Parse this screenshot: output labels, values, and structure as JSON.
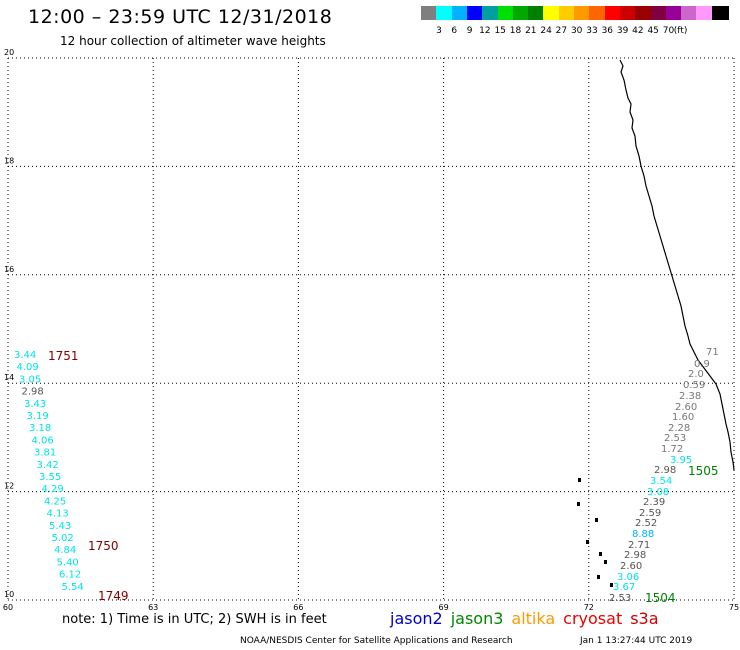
{
  "title": "12:00 – 23:59 UTC 12/31/2018",
  "subtitle": "12 hour collection of altimeter wave heights",
  "legend": {
    "colors": [
      "#7f7f7f",
      "#00ffff",
      "#00b2ff",
      "#0000ff",
      "#00a0a0",
      "#00e000",
      "#00a800",
      "#008000",
      "#ffff00",
      "#ffcc00",
      "#ff9900",
      "#ff6600",
      "#ff0000",
      "#cc0000",
      "#990000",
      "#800040",
      "#990099",
      "#cc66cc",
      "#ff99ff",
      "#000000"
    ],
    "labels": [
      "3",
      "6",
      "9",
      "12",
      "15",
      "18",
      "21",
      "24",
      "27",
      "30",
      "33",
      "36",
      "39",
      "42",
      "45",
      "70"
    ],
    "unit": "(ft)"
  },
  "axes": {
    "x_ticks": [
      "60",
      "63",
      "66",
      "69",
      "72",
      "75"
    ],
    "y_ticks": [
      "10",
      "12",
      "14",
      "16",
      "18",
      "20"
    ],
    "x_range": [
      60,
      75
    ],
    "y_range": [
      10,
      20
    ]
  },
  "observations_west": {
    "color": "#00e5e5",
    "values": [
      "3.44",
      "4.09",
      "3.05",
      "2.98",
      "3.43",
      "3.19",
      "3.18",
      "4.06",
      "3.81",
      "3.42",
      "3.55",
      "4.29",
      "4.25",
      "4.13",
      "5.43",
      "5.02",
      "4.84",
      "5.40",
      "6.12",
      "5.54"
    ],
    "colors": [
      "#00e5e5",
      "#00e5e5",
      "#00e5e5",
      "#555555",
      "#00e5e5",
      "#00e5e5",
      "#00e5e5",
      "#00e5e5",
      "#00e5e5",
      "#00e5e5",
      "#00e5e5",
      "#00e5e5",
      "#00e5e5",
      "#00e5e5",
      "#00e5e5",
      "#00e5e5",
      "#00e5e5",
      "#00e5e5",
      "#00e5e5",
      "#00e5e5"
    ]
  },
  "observations_east": {
    "values": [
      "71",
      "0.9",
      "2.0",
      "0.59",
      "2.38",
      "2.60",
      "1.60",
      "2.28",
      "2.53",
      "1.72",
      "3.95",
      "2.98",
      "3.54",
      "3.08",
      "2.39",
      "2.59",
      "2.52",
      "8.88",
      "2.71",
      "2.98",
      "2.60",
      "3.06",
      "3.67",
      "2.53"
    ],
    "colors": [
      "#777777",
      "#777777",
      "#777777",
      "#777777",
      "#777777",
      "#777777",
      "#777777",
      "#777777",
      "#777777",
      "#777777",
      "#00e5e5",
      "#555555",
      "#00e5e5",
      "#00e5e5",
      "#555555",
      "#555555",
      "#555555",
      "#00b2ff",
      "#555555",
      "#555555",
      "#555555",
      "#00e5e5",
      "#00e5e5",
      "#555555"
    ]
  },
  "pass_labels": [
    {
      "text": "1751",
      "color": "#800000"
    },
    {
      "text": "1750",
      "color": "#800000"
    },
    {
      "text": "1749",
      "color": "#800000"
    },
    {
      "text": "1505",
      "color": "#008000"
    },
    {
      "text": "1504",
      "color": "#008000"
    }
  ],
  "note": "note:  1) Time is in UTC;  2) SWH is in feet",
  "satellites": [
    {
      "name": "jason2",
      "color": "#0000cc"
    },
    {
      "name": "jason3",
      "color": "#008800"
    },
    {
      "name": "altika",
      "color": "#ff9900"
    },
    {
      "name": "cryosat",
      "color": "#ee0000"
    },
    {
      "name": "s3a",
      "color": "#cc0000"
    }
  ],
  "credit": "NOAA/NESDIS Center for Satellite Applications and Research",
  "timestamp": "Jan  1 13:27:44 UTC 2019"
}
